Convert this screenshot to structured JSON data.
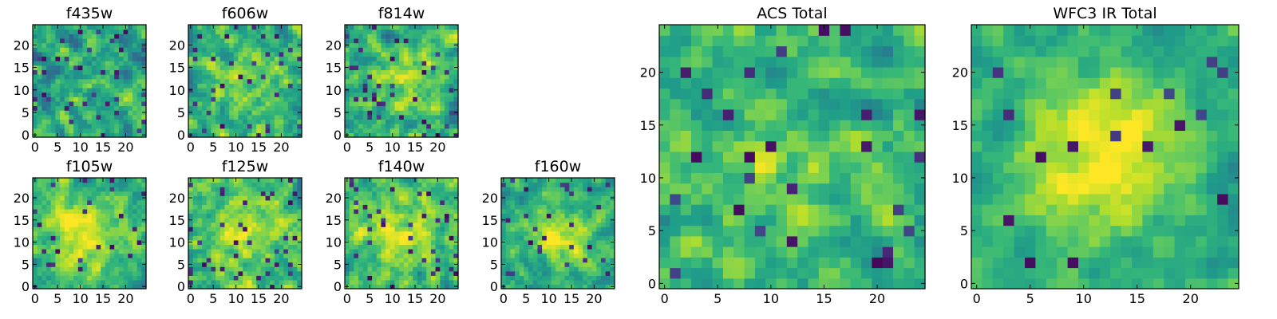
{
  "chart_data": [
    {
      "type": "heatmap",
      "title": "f435w",
      "xlim": [
        0,
        24
      ],
      "ylim": [
        0,
        24
      ],
      "xticks": [
        0,
        5,
        10,
        15,
        20
      ],
      "yticks": [
        0,
        5,
        10,
        15,
        20
      ],
      "grid_size": 25,
      "center": [
        12,
        12
      ],
      "peak": 0.05,
      "spread": 6,
      "noise": 0.55,
      "dark_fraction": 0.07,
      "seed": 11
    },
    {
      "type": "heatmap",
      "title": "f606w",
      "xlim": [
        0,
        24
      ],
      "ylim": [
        0,
        24
      ],
      "xticks": [
        0,
        5,
        10,
        15,
        20
      ],
      "yticks": [
        0,
        5,
        10,
        15,
        20
      ],
      "grid_size": 25,
      "center": [
        12,
        12
      ],
      "peak": 0.25,
      "spread": 6,
      "noise": 0.5,
      "dark_fraction": 0.05,
      "seed": 23
    },
    {
      "type": "heatmap",
      "title": "f814w",
      "xlim": [
        0,
        24
      ],
      "ylim": [
        0,
        24
      ],
      "xticks": [
        0,
        5,
        10,
        15,
        20
      ],
      "yticks": [
        0,
        5,
        10,
        15,
        20
      ],
      "grid_size": 25,
      "center": [
        13,
        11
      ],
      "peak": 0.3,
      "spread": 5,
      "noise": 0.5,
      "dark_fraction": 0.06,
      "seed": 37
    },
    {
      "type": "heatmap",
      "title": "f105w",
      "xlim": [
        0,
        24
      ],
      "ylim": [
        0,
        24
      ],
      "xticks": [
        0,
        5,
        10,
        15,
        20
      ],
      "yticks": [
        0,
        5,
        10,
        15,
        20
      ],
      "grid_size": 25,
      "center": [
        11,
        12
      ],
      "peak": 0.5,
      "spread": 6,
      "noise": 0.4,
      "dark_fraction": 0.05,
      "seed": 41
    },
    {
      "type": "heatmap",
      "title": "f125w",
      "xlim": [
        0,
        24
      ],
      "ylim": [
        0,
        24
      ],
      "xticks": [
        0,
        5,
        10,
        15,
        20
      ],
      "yticks": [
        0,
        5,
        10,
        15,
        20
      ],
      "grid_size": 25,
      "center": [
        12,
        12
      ],
      "peak": 0.35,
      "spread": 8,
      "noise": 0.45,
      "dark_fraction": 0.05,
      "seed": 53
    },
    {
      "type": "heatmap",
      "title": "f140w",
      "xlim": [
        0,
        24
      ],
      "ylim": [
        0,
        24
      ],
      "xticks": [
        0,
        5,
        10,
        15,
        20
      ],
      "yticks": [
        0,
        5,
        10,
        15,
        20
      ],
      "grid_size": 25,
      "center": [
        12,
        13
      ],
      "peak": 0.35,
      "spread": 8,
      "noise": 0.45,
      "dark_fraction": 0.05,
      "seed": 67
    },
    {
      "type": "heatmap",
      "title": "f160w",
      "xlim": [
        0,
        24
      ],
      "ylim": [
        0,
        24
      ],
      "xticks": [
        0,
        5,
        10,
        15,
        20
      ],
      "yticks": [
        0,
        5,
        10,
        15,
        20
      ],
      "grid_size": 25,
      "center": [
        12,
        11
      ],
      "peak": 0.55,
      "spread": 4,
      "noise": 0.4,
      "dark_fraction": 0.04,
      "seed": 79
    },
    {
      "type": "heatmap",
      "title": "ACS Total",
      "xlim": [
        0,
        24
      ],
      "ylim": [
        0,
        24
      ],
      "xticks": [
        0,
        5,
        10,
        15,
        20
      ],
      "yticks": [
        0,
        5,
        10,
        15,
        20
      ],
      "grid_size": 25,
      "center": [
        12,
        12
      ],
      "peak": 0.2,
      "spread": 7,
      "noise": 0.45,
      "dark_fraction": 0.05,
      "seed": 97
    },
    {
      "type": "heatmap",
      "title": "WFC3 IR Total",
      "xlim": [
        0,
        24
      ],
      "ylim": [
        0,
        24
      ],
      "xticks": [
        0,
        5,
        10,
        15,
        20
      ],
      "yticks": [
        0,
        5,
        10,
        15,
        20
      ],
      "grid_size": 25,
      "center": [
        12,
        12
      ],
      "peak": 0.6,
      "spread": 5,
      "noise": 0.3,
      "dark_fraction": 0.035,
      "seed": 113
    }
  ]
}
